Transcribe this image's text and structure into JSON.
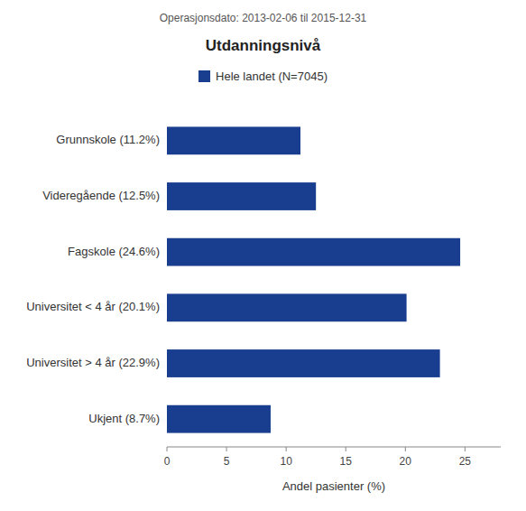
{
  "chart_data": {
    "type": "bar",
    "orientation": "horizontal",
    "title": "Utdanningsnivå",
    "subtitle": "Operasjonsdato: 2013-02-06 til 2015-12-31",
    "xlabel": "Andel pasienter (%)",
    "categories": [
      "Grunnskole (11.2%)",
      "Videregående (12.5%)",
      "Fagskole (24.6%)",
      "Universitet < 4 år (20.1%)",
      "Universitet > 4 år (22.9%)",
      "Ukjent (8.7%)"
    ],
    "series": [
      {
        "name": "Hele landet (N=7045)",
        "color": "#1A3E8F",
        "values": [
          11.2,
          12.5,
          24.6,
          20.1,
          22.9,
          8.7
        ]
      }
    ],
    "xlim": [
      0,
      28
    ],
    "xticks": [
      0,
      5,
      10,
      15,
      20,
      25
    ],
    "grid": false,
    "legend": "top"
  }
}
